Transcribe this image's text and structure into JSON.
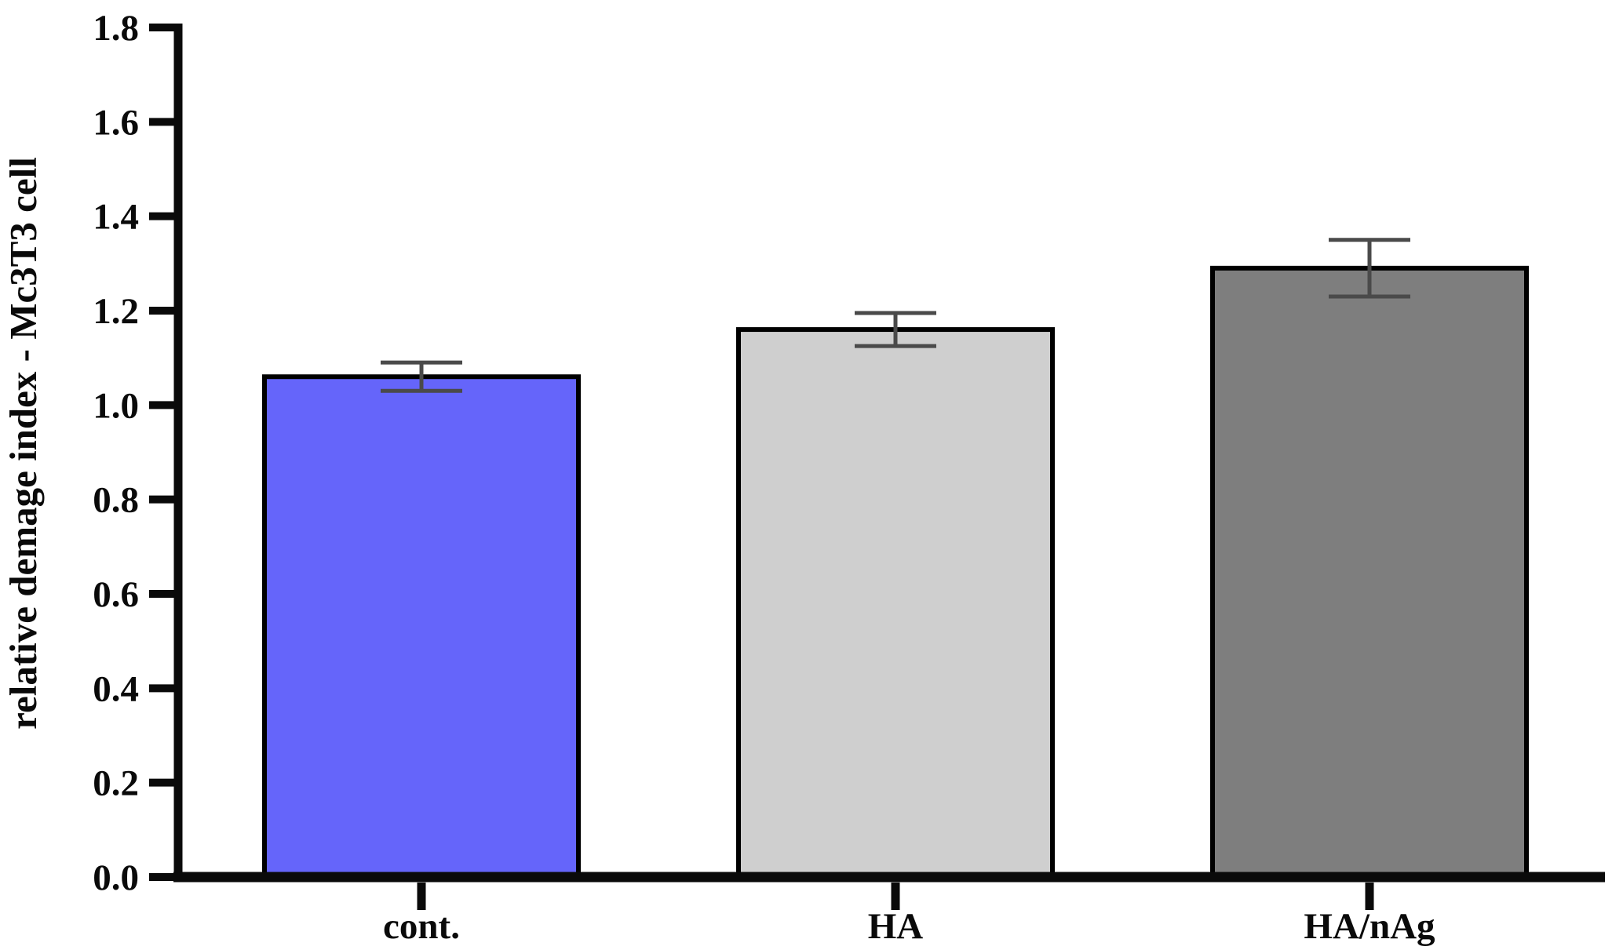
{
  "figure": {
    "background": "#ffffff"
  },
  "chart_data": {
    "type": "bar",
    "title": "",
    "xlabel": "",
    "ylabel": "relative demage index - Mc3T3 cell",
    "categories": [
      "cont.",
      "HA",
      "HA/nAg"
    ],
    "values": [
      1.06,
      1.16,
      1.29
    ],
    "errors": [
      0.03,
      0.035,
      0.06
    ],
    "bar_colors": [
      "#6565FA",
      "#CFCFCF",
      "#7E7E7E"
    ],
    "bar_edge_color": "#000000",
    "error_bar_color": "#4A4A4A",
    "axis_color": "#0a0a0a",
    "ylim": [
      0,
      1.8
    ],
    "yticks": [
      0.0,
      0.2,
      0.4,
      0.6,
      0.8,
      1.0,
      1.2,
      1.4,
      1.6,
      1.8
    ],
    "ytick_labels": [
      "0.0",
      "0.2",
      "0.4",
      "0.6",
      "0.8",
      "1.0",
      "1.2",
      "1.4",
      "1.6",
      "1.8"
    ],
    "grid": false,
    "legend": "none"
  }
}
